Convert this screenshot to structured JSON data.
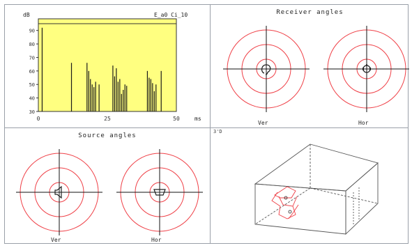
{
  "colors": {
    "plot_bg": "#ffff80",
    "ring": "#ef3f46",
    "bar": "#1a1a1a",
    "frame": "#9aa0a8"
  },
  "echogram": {
    "unit_top": "dB",
    "unit_bottom": "ms",
    "title": "E_a0 Ci_10",
    "chart_data": {
      "type": "bar",
      "x": [
        2,
        19,
        28,
        29,
        30,
        31,
        32,
        33,
        35,
        43,
        44,
        45,
        46,
        47,
        48,
        49,
        50,
        51,
        63,
        64,
        65,
        66,
        67,
        68,
        71
      ],
      "values": [
        92,
        66,
        66,
        60,
        54,
        50,
        48,
        52,
        50,
        64,
        56,
        62,
        52,
        54,
        43,
        46,
        50,
        49,
        60,
        55,
        54,
        51,
        45,
        50,
        60
      ],
      "xlim": [
        0,
        80
      ],
      "ylim": [
        30,
        95
      ],
      "yticks": [
        "90",
        "80",
        "70",
        "60",
        "50",
        "40",
        "30"
      ],
      "xticks": [
        "0",
        "25",
        "50"
      ]
    }
  },
  "receiver": {
    "title": "Receiver angles",
    "left_label": "Ver",
    "right_label": "Hor",
    "left_icon": "ear-icon",
    "right_icon": "head-icon"
  },
  "source": {
    "title": "Source angles",
    "left_label": "Ver",
    "right_label": "Hor",
    "left_icon": "speaker-icon",
    "right_icon": "speaker-top-icon"
  },
  "view3d": {
    "corner_label": "3'D"
  }
}
